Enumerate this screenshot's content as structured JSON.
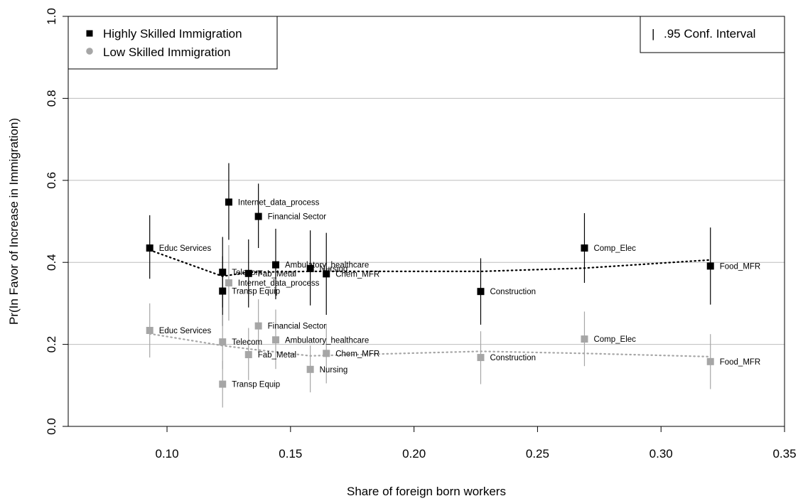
{
  "chart_data": {
    "type": "scatter",
    "xlabel": "Share of foreign born workers",
    "ylabel": "Pr(In Favor of Increase in Immigration)",
    "xlim": [
      0.06,
      0.35
    ],
    "ylim": [
      0.0,
      1.0
    ],
    "x_ticks": [
      0.1,
      0.15,
      0.2,
      0.25,
      0.3,
      0.35
    ],
    "x_tick_labels": [
      "0.10",
      "0.15",
      "0.20",
      "0.25",
      "0.30",
      "0.35"
    ],
    "y_ticks": [
      0.0,
      0.2,
      0.4,
      0.6,
      0.8,
      1.0
    ],
    "y_tick_labels": [
      "0.0",
      "0.2",
      "0.4",
      "0.6",
      "0.8",
      "1.0"
    ],
    "gridlines_y": [
      0.2,
      0.4,
      0.6,
      0.8
    ],
    "grid": "horizontal",
    "legend": {
      "position": "top-left",
      "entries": [
        {
          "label": "Highly Skilled Immigration",
          "color": "#000000",
          "marker": "square"
        },
        {
          "label": "Low Skilled Immigration",
          "color": "#a6a6a6",
          "marker": "circle"
        }
      ]
    },
    "ci_legend": {
      "position": "top-right",
      "symbol": "|",
      "label": ".95 Conf. Interval"
    },
    "series": [
      {
        "name": "Highly Skilled Immigration",
        "color": "#000000",
        "points": [
          {
            "label": "Educ Services",
            "x": 0.093,
            "y": 0.435,
            "lo": 0.36,
            "hi": 0.515
          },
          {
            "label": "Internet_data_process",
            "x": 0.125,
            "y": 0.547,
            "lo": 0.455,
            "hi": 0.642
          },
          {
            "label": "Financial Sector",
            "x": 0.137,
            "y": 0.512,
            "lo": 0.435,
            "hi": 0.592
          },
          {
            "label": "Telecom",
            "x": 0.1225,
            "y": 0.376,
            "lo": 0.29,
            "hi": 0.462
          },
          {
            "label": "Fab_Metal",
            "x": 0.133,
            "y": 0.373,
            "lo": 0.29,
            "hi": 0.456
          },
          {
            "label": "Ambulatory_healthcare",
            "x": 0.144,
            "y": 0.394,
            "lo": 0.31,
            "hi": 0.482
          },
          {
            "label": "Nursing",
            "x": 0.158,
            "y": 0.385,
            "lo": 0.295,
            "hi": 0.478
          },
          {
            "label": "Chem_MFR",
            "x": 0.1645,
            "y": 0.372,
            "lo": 0.272,
            "hi": 0.472
          },
          {
            "label": "Transp Equip",
            "x": 0.1225,
            "y": 0.33,
            "lo": 0.245,
            "hi": 0.415
          },
          {
            "label": "Construction",
            "x": 0.227,
            "y": 0.329,
            "lo": 0.248,
            "hi": 0.41
          },
          {
            "label": "Comp_Elec",
            "x": 0.269,
            "y": 0.435,
            "lo": 0.35,
            "hi": 0.52
          },
          {
            "label": "Food_MFR",
            "x": 0.32,
            "y": 0.391,
            "lo": 0.297,
            "hi": 0.485
          }
        ],
        "trend": [
          [
            0.093,
            0.43
          ],
          [
            0.1225,
            0.366
          ],
          [
            0.133,
            0.376
          ],
          [
            0.158,
            0.378
          ],
          [
            0.227,
            0.378
          ],
          [
            0.269,
            0.386
          ],
          [
            0.32,
            0.406
          ]
        ]
      },
      {
        "name": "Low Skilled Immigration",
        "color": "#a6a6a6",
        "points": [
          {
            "label": "Educ Services",
            "x": 0.093,
            "y": 0.234,
            "lo": 0.168,
            "hi": 0.3
          },
          {
            "label": "Internet_data_process",
            "x": 0.125,
            "y": 0.35,
            "lo": 0.258,
            "hi": 0.442
          },
          {
            "label": "Financial Sector",
            "x": 0.137,
            "y": 0.245,
            "lo": 0.18,
            "hi": 0.31
          },
          {
            "label": "Telecom",
            "x": 0.1225,
            "y": 0.206,
            "lo": 0.14,
            "hi": 0.272
          },
          {
            "label": "Ambulatory_healthcare",
            "x": 0.144,
            "y": 0.211,
            "lo": 0.14,
            "hi": 0.285
          },
          {
            "label": "Fab_Metal",
            "x": 0.133,
            "y": 0.175,
            "lo": 0.113,
            "hi": 0.24
          },
          {
            "label": "Chem_MFR",
            "x": 0.1645,
            "y": 0.178,
            "lo": 0.105,
            "hi": 0.25
          },
          {
            "label": "Nursing",
            "x": 0.158,
            "y": 0.139,
            "lo": 0.083,
            "hi": 0.197
          },
          {
            "label": "Transp Equip",
            "x": 0.1225,
            "y": 0.103,
            "lo": 0.046,
            "hi": 0.16
          },
          {
            "label": "Construction",
            "x": 0.227,
            "y": 0.168,
            "lo": 0.103,
            "hi": 0.232
          },
          {
            "label": "Comp_Elec",
            "x": 0.269,
            "y": 0.213,
            "lo": 0.147,
            "hi": 0.28
          },
          {
            "label": "Food_MFR",
            "x": 0.32,
            "y": 0.158,
            "lo": 0.091,
            "hi": 0.225
          }
        ],
        "trend": [
          [
            0.093,
            0.226
          ],
          [
            0.1225,
            0.197
          ],
          [
            0.133,
            0.189
          ],
          [
            0.158,
            0.172
          ],
          [
            0.227,
            0.183
          ],
          [
            0.269,
            0.178
          ],
          [
            0.32,
            0.17
          ]
        ]
      }
    ]
  }
}
